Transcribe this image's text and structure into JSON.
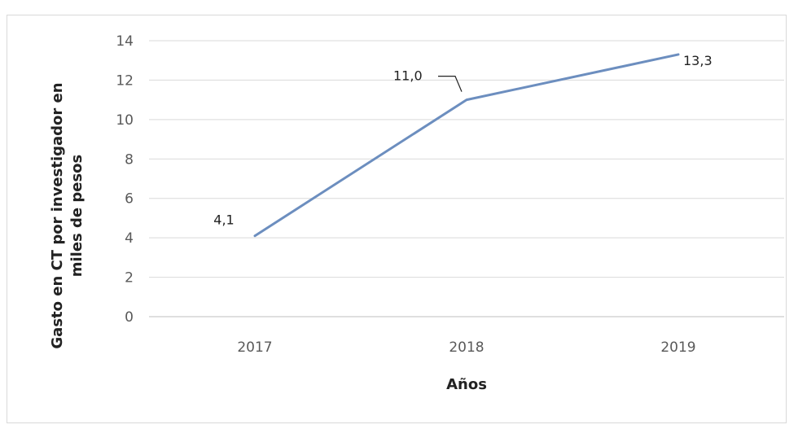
{
  "chart_data": {
    "type": "line",
    "categories": [
      "2017",
      "2018",
      "2019"
    ],
    "series": [
      {
        "values": [
          4.1,
          11.0,
          13.3
        ],
        "labels": [
          "4,1",
          "11,0",
          "13,3"
        ]
      }
    ],
    "title": "",
    "xlabel": "Años",
    "ylabel_lines": [
      "Gasto en CT por investigador en",
      "miles de pesos"
    ],
    "ylim": [
      0,
      14
    ],
    "yticks": [
      "0",
      "2",
      "4",
      "6",
      "8",
      "10",
      "12",
      "14"
    ],
    "grid": true,
    "legend": false,
    "colors": {
      "line": "#6c8ebf",
      "grid": "#d9d9d9",
      "axis": "#bfbfbf"
    }
  }
}
